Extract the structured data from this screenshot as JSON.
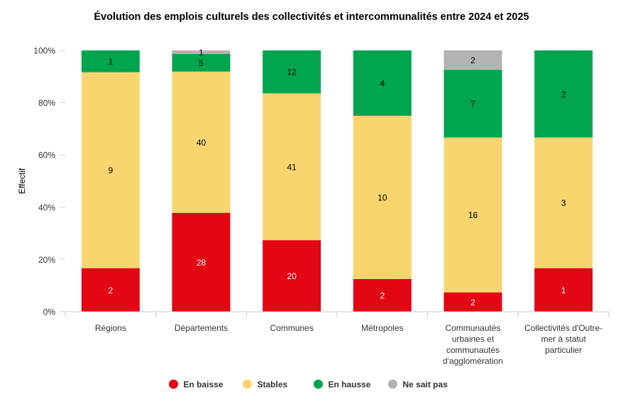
{
  "chart_data": {
    "type": "bar",
    "stacked": "percent",
    "title": "Évolution des emplois culturels des collectivités et intercommunalités entre 2024 et 2025",
    "xlabel": "",
    "ylabel": "Effectif",
    "ylim": [
      0,
      100
    ],
    "yticks": [
      "0%",
      "20%",
      "40%",
      "60%",
      "80%",
      "100%"
    ],
    "categories": [
      [
        "Régions"
      ],
      [
        "Départements"
      ],
      [
        "Communes"
      ],
      [
        "Métropoles"
      ],
      [
        "Communautés",
        "urbaines et",
        "communautés",
        "d'agglomération"
      ],
      [
        "Collectivités d'Outre-",
        "mer à statut",
        "particulier"
      ]
    ],
    "series": [
      {
        "name": "En baisse",
        "color": "#e30613",
        "values": [
          2,
          28,
          20,
          2,
          2,
          1
        ]
      },
      {
        "name": "Stables",
        "color": "#f8d56f",
        "values": [
          9,
          40,
          41,
          10,
          16,
          3
        ]
      },
      {
        "name": "En hausse",
        "color": "#00a64f",
        "values": [
          1,
          5,
          12,
          4,
          7,
          2
        ]
      },
      {
        "name": "Ne sait pas",
        "color": "#b3b3b3",
        "values": [
          0,
          1,
          0,
          0,
          2,
          0
        ]
      }
    ],
    "legend_position": "bottom"
  }
}
